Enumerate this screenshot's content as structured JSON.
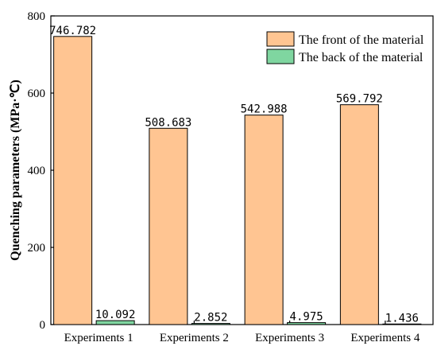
{
  "chart_data": {
    "type": "bar",
    "categories": [
      "Experiments 1",
      "Experiments 2",
      "Experiments 3",
      "Experiments 4"
    ],
    "series": [
      {
        "name": "The front of the material",
        "values": [
          746.782,
          508.683,
          542.988,
          569.792
        ],
        "labels": [
          "746.782",
          "508.683",
          "542.988",
          "569.792"
        ],
        "color": "#FFC592"
      },
      {
        "name": "The back of the material",
        "values": [
          10.092,
          2.852,
          4.975,
          1.436
        ],
        "labels": [
          "10.092",
          "2.852",
          "4.975",
          "1.436"
        ],
        "color": "#7FD6A0"
      }
    ],
    "title": "",
    "xlabel": "",
    "ylabel": "Quenching parameters (MPa·℃)",
    "ylim": [
      0,
      800
    ],
    "yticks": [
      0,
      200,
      400,
      600,
      800
    ],
    "grid": false,
    "legend": "top-right"
  }
}
